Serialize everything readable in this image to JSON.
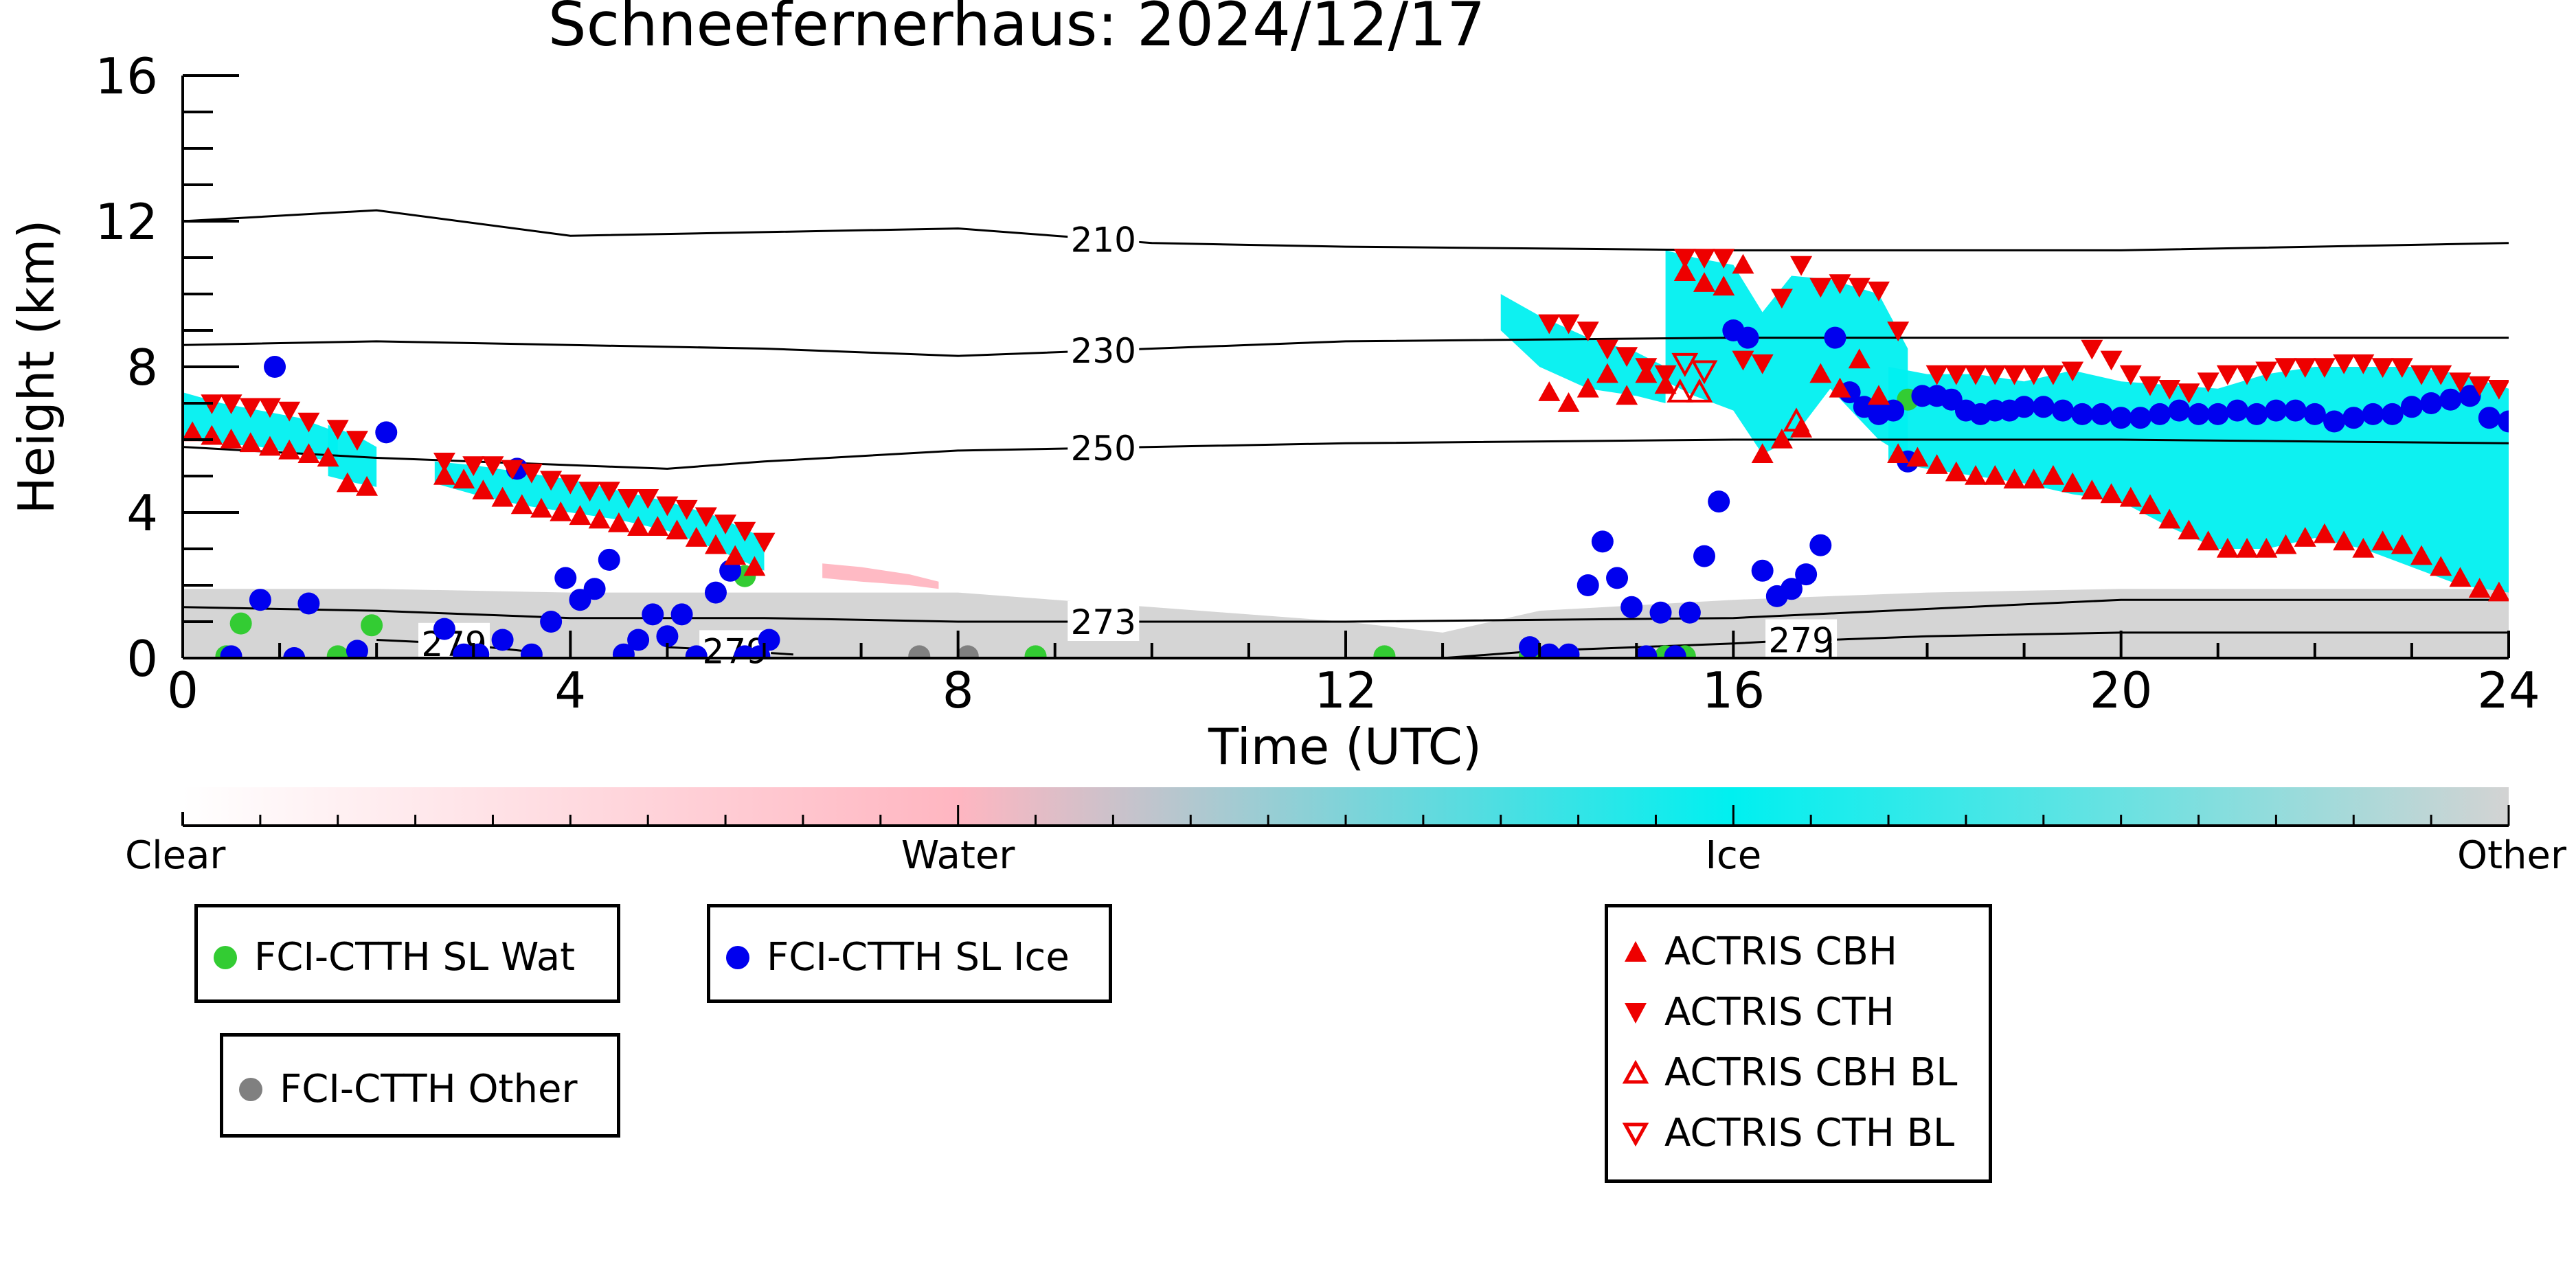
{
  "chart_data": {
    "type": "scatter",
    "title": "Schneefernerhaus: 2024/12/17",
    "xlabel": "Time (UTC)",
    "ylabel": "Height (km)",
    "xlim": [
      0,
      24
    ],
    "ylim": [
      0,
      16
    ],
    "xticks": [
      0,
      4,
      8,
      12,
      16,
      20,
      24
    ],
    "yticks": [
      0,
      4,
      8,
      12,
      16
    ],
    "grid": false,
    "background_classes": [
      {
        "name": "Ice",
        "color": "#00f0f0",
        "regions": [
          {
            "t": [
              0.0,
              0.4,
              0.8,
              1.2,
              1.5,
              1.6
            ],
            "top": [
              7.3,
              7.0,
              6.8,
              6.6,
              6.3,
              6.0
            ],
            "bottom": [
              6.0,
              5.9,
              5.8,
              5.6,
              5.4,
              5.2
            ]
          },
          {
            "t": [
              1.5,
              1.8,
              2.0
            ],
            "top": [
              6.4,
              6.1,
              5.8
            ],
            "bottom": [
              5.0,
              4.8,
              4.7
            ]
          },
          {
            "t": [
              2.6,
              3.0,
              3.5,
              4.0,
              4.5,
              5.0,
              5.5,
              6.0
            ],
            "top": [
              5.4,
              5.3,
              5.1,
              4.9,
              4.6,
              4.3,
              3.9,
              3.3
            ],
            "bottom": [
              4.8,
              4.5,
              4.2,
              4.0,
              3.8,
              3.5,
              3.0,
              2.4
            ]
          },
          {
            "t": [
              13.6,
              14.0,
              14.5,
              15.0,
              15.3
            ],
            "top": [
              10.0,
              9.4,
              8.8,
              8.4,
              8.0
            ],
            "bottom": [
              9.0,
              8.0,
              7.4,
              7.2,
              7.0
            ]
          },
          {
            "t": [
              15.3,
              15.6,
              16.0,
              16.3,
              16.6,
              17.0,
              17.5,
              17.8
            ],
            "top": [
              11.2,
              11.0,
              10.8,
              9.5,
              10.5,
              10.4,
              10.0,
              8.5
            ],
            "bottom": [
              7.6,
              7.2,
              6.8,
              5.6,
              6.0,
              7.4,
              6.0,
              5.5
            ]
          },
          {
            "t": [
              17.6,
              18.0,
              18.5,
              19.0,
              19.5,
              20.0,
              20.5,
              21.0,
              21.5,
              22.0,
              22.5,
              23.0,
              23.5,
              24.0
            ],
            "top": [
              8.0,
              7.8,
              7.8,
              7.6,
              7.9,
              7.6,
              7.5,
              7.4,
              7.8,
              8.0,
              8.0,
              8.0,
              7.8,
              7.4
            ],
            "bottom": [
              5.4,
              5.2,
              5.0,
              4.8,
              4.5,
              4.3,
              3.6,
              3.0,
              3.0,
              3.3,
              3.0,
              2.5,
              2.0,
              1.8
            ]
          }
        ]
      },
      {
        "name": "Water",
        "color": "#ffb6c1",
        "regions": [
          {
            "t": [
              6.6,
              7.0,
              7.5,
              7.8
            ],
            "top": [
              2.6,
              2.5,
              2.3,
              2.1
            ],
            "bottom": [
              2.2,
              2.1,
              2.0,
              1.9
            ]
          }
        ]
      },
      {
        "name": "Other",
        "color": "#d3d3d3",
        "regions": [
          {
            "t": [
              0,
              2,
              4,
              6,
              8,
              10,
              12,
              13,
              14,
              16,
              18,
              20,
              22,
              24
            ],
            "top": [
              1.9,
              1.9,
              1.8,
              1.8,
              1.8,
              1.4,
              1.0,
              0.7,
              1.3,
              1.6,
              1.8,
              1.9,
              1.9,
              1.9
            ],
            "bottom": [
              0,
              0,
              0,
              0,
              0,
              0,
              0,
              0,
              0,
              0,
              0,
              0,
              0,
              0
            ]
          }
        ]
      }
    ],
    "contours": [
      {
        "label": "210",
        "label_x": 9.5,
        "x": [
          0,
          2,
          4,
          6,
          8,
          10,
          12,
          16,
          20,
          24
        ],
        "y": [
          12.0,
          12.3,
          11.6,
          11.7,
          11.8,
          11.4,
          11.3,
          11.2,
          11.2,
          11.4
        ]
      },
      {
        "label": "230",
        "label_x": 9.5,
        "x": [
          0,
          2,
          4,
          6,
          8,
          10,
          12,
          16,
          20,
          24
        ],
        "y": [
          8.6,
          8.7,
          8.6,
          8.5,
          8.3,
          8.5,
          8.7,
          8.8,
          8.8,
          8.8
        ]
      },
      {
        "label": "250",
        "label_x": 9.5,
        "x": [
          0,
          2,
          4,
          5,
          6,
          8,
          10,
          12,
          16,
          20,
          24
        ],
        "y": [
          5.8,
          5.5,
          5.3,
          5.2,
          5.4,
          5.7,
          5.8,
          5.9,
          6.0,
          6.0,
          5.9
        ]
      },
      {
        "label": "273",
        "label_x": 9.5,
        "x": [
          0,
          2,
          4,
          6,
          8,
          10,
          12,
          16,
          20,
          24
        ],
        "y": [
          1.4,
          1.3,
          1.1,
          1.1,
          1.0,
          1.0,
          1.0,
          1.1,
          1.6,
          1.6
        ]
      },
      {
        "label": "279",
        "label_x": 2.8,
        "x": [
          2,
          2.8,
          3.5
        ],
        "y": [
          0.5,
          0.4,
          0.2
        ]
      },
      {
        "label": "279",
        "label_x": 5.7,
        "x": [
          5.0,
          5.7,
          6.3
        ],
        "y": [
          0.3,
          0.2,
          0.1
        ]
      },
      {
        "label": "279",
        "label_x": 16.7,
        "x": [
          13.0,
          14,
          15,
          16,
          16.7,
          17,
          18,
          20,
          21,
          22,
          24
        ],
        "y": [
          0.0,
          0.2,
          0.3,
          0.4,
          0.5,
          0.5,
          0.6,
          0.7,
          0.7,
          0.7,
          0.7
        ]
      }
    ],
    "series": [
      {
        "name": "FCI-CTTH SL Wat",
        "marker": "circle",
        "color": "#33cc33",
        "x": [
          0.45,
          0.6,
          1.6,
          1.95,
          5.8,
          8.8,
          12.4,
          13.9,
          15.3,
          15.5,
          17.8
        ],
        "y": [
          0.05,
          0.95,
          0.05,
          0.9,
          2.25,
          0.05,
          0.05,
          0.05,
          0.05,
          0.05,
          7.1
        ]
      },
      {
        "name": "FCI-CTTH SL Ice",
        "marker": "circle",
        "color": "#0000ee",
        "x": [
          0.5,
          0.8,
          0.95,
          1.15,
          1.3,
          1.8,
          2.1,
          2.7,
          2.9,
          3.05,
          3.3,
          3.45,
          3.6,
          3.8,
          3.95,
          4.1,
          4.25,
          4.4,
          4.55,
          4.7,
          4.85,
          5.0,
          5.15,
          5.3,
          5.5,
          5.65,
          5.8,
          5.95,
          6.05,
          13.9,
          14.1,
          14.3,
          14.5,
          14.65,
          14.8,
          14.95,
          15.1,
          15.25,
          15.4,
          15.55,
          15.7,
          15.85,
          16.0,
          16.15,
          16.3,
          16.45,
          16.6,
          16.75,
          16.9,
          17.05,
          17.2,
          17.35,
          17.5,
          17.65,
          17.8,
          17.95,
          18.1,
          18.25,
          18.4,
          18.55,
          18.7,
          18.85,
          19.0,
          19.2,
          19.4,
          19.6,
          19.8,
          20.0,
          20.2,
          20.4,
          20.6,
          20.8,
          21.0,
          21.2,
          21.4,
          21.6,
          21.8,
          22.0,
          22.2,
          22.4,
          22.6,
          22.8,
          23.0,
          23.2,
          23.4,
          23.6,
          23.8,
          24.0
        ],
        "y": [
          0.05,
          1.6,
          8.0,
          0.0,
          1.5,
          0.2,
          6.2,
          0.8,
          0.1,
          0.1,
          0.5,
          5.2,
          0.1,
          1.0,
          2.2,
          1.6,
          1.9,
          2.7,
          0.1,
          0.5,
          1.2,
          0.6,
          1.2,
          0.05,
          1.8,
          2.4,
          0.05,
          0.05,
          0.5,
          0.3,
          0.1,
          0.1,
          2.0,
          3.2,
          2.2,
          1.4,
          0.05,
          1.25,
          0.05,
          1.25,
          2.8,
          4.3,
          9.0,
          8.8,
          2.4,
          1.7,
          1.9,
          2.3,
          3.1,
          8.8,
          7.3,
          6.9,
          6.7,
          6.8,
          5.4,
          7.2,
          7.2,
          7.1,
          6.8,
          6.7,
          6.8,
          6.8,
          6.9,
          6.9,
          6.8,
          6.7,
          6.7,
          6.6,
          6.6,
          6.7,
          6.8,
          6.7,
          6.7,
          6.8,
          6.7,
          6.8,
          6.8,
          6.7,
          6.5,
          6.6,
          6.7,
          6.7,
          6.9,
          7.0,
          7.1,
          7.2,
          6.6,
          6.5
        ]
      },
      {
        "name": "FCI-CTTH Other",
        "marker": "circle",
        "color": "#808080",
        "x": [
          7.6,
          8.1
        ],
        "y": [
          0.05,
          0.05
        ]
      },
      {
        "name": "ACTRIS CBH",
        "marker": "triangle-up",
        "color": "#ee0000",
        "filled": true,
        "x": [
          0.1,
          0.3,
          0.5,
          0.7,
          0.9,
          1.1,
          1.3,
          1.5,
          1.7,
          1.9,
          2.7,
          2.9,
          3.1,
          3.3,
          3.5,
          3.7,
          3.9,
          4.1,
          4.3,
          4.5,
          4.7,
          4.9,
          5.1,
          5.3,
          5.5,
          5.7,
          5.9,
          14.1,
          14.3,
          14.5,
          14.7,
          14.9,
          15.1,
          15.3,
          15.5,
          15.7,
          15.9,
          16.1,
          16.3,
          16.5,
          16.7,
          16.9,
          17.1,
          17.3,
          17.5,
          17.7,
          17.9,
          18.1,
          18.3,
          18.5,
          18.7,
          18.9,
          19.1,
          19.3,
          19.5,
          19.7,
          19.9,
          20.1,
          20.3,
          20.5,
          20.7,
          20.9,
          21.1,
          21.3,
          21.5,
          21.7,
          21.9,
          22.1,
          22.3,
          22.5,
          22.7,
          22.9,
          23.1,
          23.3,
          23.5,
          23.7,
          23.9
        ],
        "y": [
          6.2,
          6.1,
          6.0,
          5.9,
          5.8,
          5.7,
          5.6,
          5.5,
          4.8,
          4.7,
          5.0,
          4.9,
          4.6,
          4.4,
          4.2,
          4.1,
          4.0,
          3.9,
          3.8,
          3.7,
          3.6,
          3.6,
          3.5,
          3.3,
          3.1,
          2.8,
          2.5,
          7.3,
          7.0,
          7.4,
          7.8,
          7.2,
          7.8,
          7.5,
          10.6,
          10.3,
          10.2,
          10.8,
          5.6,
          6.0,
          6.3,
          7.8,
          7.4,
          8.2,
          7.2,
          5.6,
          5.5,
          5.3,
          5.1,
          5.0,
          5.0,
          4.9,
          4.9,
          5.0,
          4.8,
          4.6,
          4.5,
          4.4,
          4.2,
          3.8,
          3.5,
          3.2,
          3.0,
          3.0,
          3.0,
          3.1,
          3.3,
          3.4,
          3.2,
          3.0,
          3.2,
          3.1,
          2.8,
          2.5,
          2.2,
          1.9,
          1.8
        ]
      },
      {
        "name": "ACTRIS CTH",
        "marker": "triangle-down",
        "color": "#ee0000",
        "filled": true,
        "x": [
          0.3,
          0.5,
          0.7,
          0.9,
          1.1,
          1.3,
          1.6,
          1.8,
          2.7,
          3.0,
          3.2,
          3.4,
          3.6,
          3.8,
          4.0,
          4.2,
          4.4,
          4.6,
          4.8,
          5.0,
          5.2,
          5.4,
          5.6,
          5.8,
          6.0,
          14.1,
          14.3,
          14.5,
          14.7,
          14.9,
          15.1,
          15.3,
          15.5,
          15.7,
          15.9,
          16.1,
          16.3,
          16.5,
          16.7,
          16.9,
          17.1,
          17.3,
          17.5,
          17.7,
          18.1,
          18.3,
          18.5,
          18.7,
          18.9,
          19.1,
          19.3,
          19.5,
          19.7,
          19.9,
          20.1,
          20.3,
          20.5,
          20.7,
          20.9,
          21.1,
          21.3,
          21.5,
          21.7,
          21.9,
          22.1,
          22.3,
          22.5,
          22.7,
          22.9,
          23.1,
          23.3,
          23.5,
          23.7,
          23.9
        ],
        "y": [
          7.0,
          7.0,
          6.9,
          6.9,
          6.8,
          6.5,
          6.3,
          6.0,
          5.4,
          5.3,
          5.3,
          5.2,
          5.1,
          4.9,
          4.8,
          4.6,
          4.6,
          4.4,
          4.4,
          4.2,
          4.1,
          3.9,
          3.7,
          3.5,
          3.2,
          9.2,
          9.2,
          9.0,
          8.5,
          8.3,
          8.0,
          7.8,
          11.0,
          11.0,
          11.0,
          8.2,
          8.1,
          9.9,
          10.8,
          10.2,
          10.3,
          10.2,
          10.1,
          9.0,
          7.8,
          7.8,
          7.8,
          7.8,
          7.8,
          7.8,
          7.8,
          7.9,
          8.5,
          8.2,
          7.8,
          7.5,
          7.4,
          7.3,
          7.6,
          7.8,
          7.8,
          7.9,
          8.0,
          8.0,
          8.0,
          8.1,
          8.1,
          8.0,
          8.0,
          7.8,
          7.8,
          7.6,
          7.5,
          7.4
        ]
      },
      {
        "name": "ACTRIS CBH BL",
        "marker": "triangle-up",
        "color": "#ee0000",
        "filled": false,
        "x": [
          15.45,
          15.65,
          16.65
        ],
        "y": [
          7.3,
          7.3,
          6.5
        ]
      },
      {
        "name": "ACTRIS CTH BL",
        "marker": "triangle-down",
        "color": "#ee0000",
        "filled": false,
        "x": [
          15.5,
          15.7
        ],
        "y": [
          8.1,
          7.9
        ]
      }
    ],
    "colorbar": {
      "labels": [
        "Clear",
        "Water",
        "Ice",
        "Other"
      ],
      "colors": [
        "#ffffff",
        "#ffb6c1",
        "#00f0f0",
        "#d3d3d3"
      ]
    },
    "legend_groups": [
      {
        "placement": "bottom-left",
        "entries": [
          "FCI-CTTH SL Wat"
        ]
      },
      {
        "placement": "bottom-center-left",
        "entries": [
          "FCI-CTTH SL Ice"
        ]
      },
      {
        "placement": "bottom-left-lower",
        "entries": [
          "FCI-CTTH Other"
        ]
      },
      {
        "placement": "bottom-center-right",
        "entries": [
          "ACTRIS CBH",
          "ACTRIS CTH",
          "ACTRIS CBH BL",
          "ACTRIS CTH BL"
        ]
      }
    ]
  }
}
